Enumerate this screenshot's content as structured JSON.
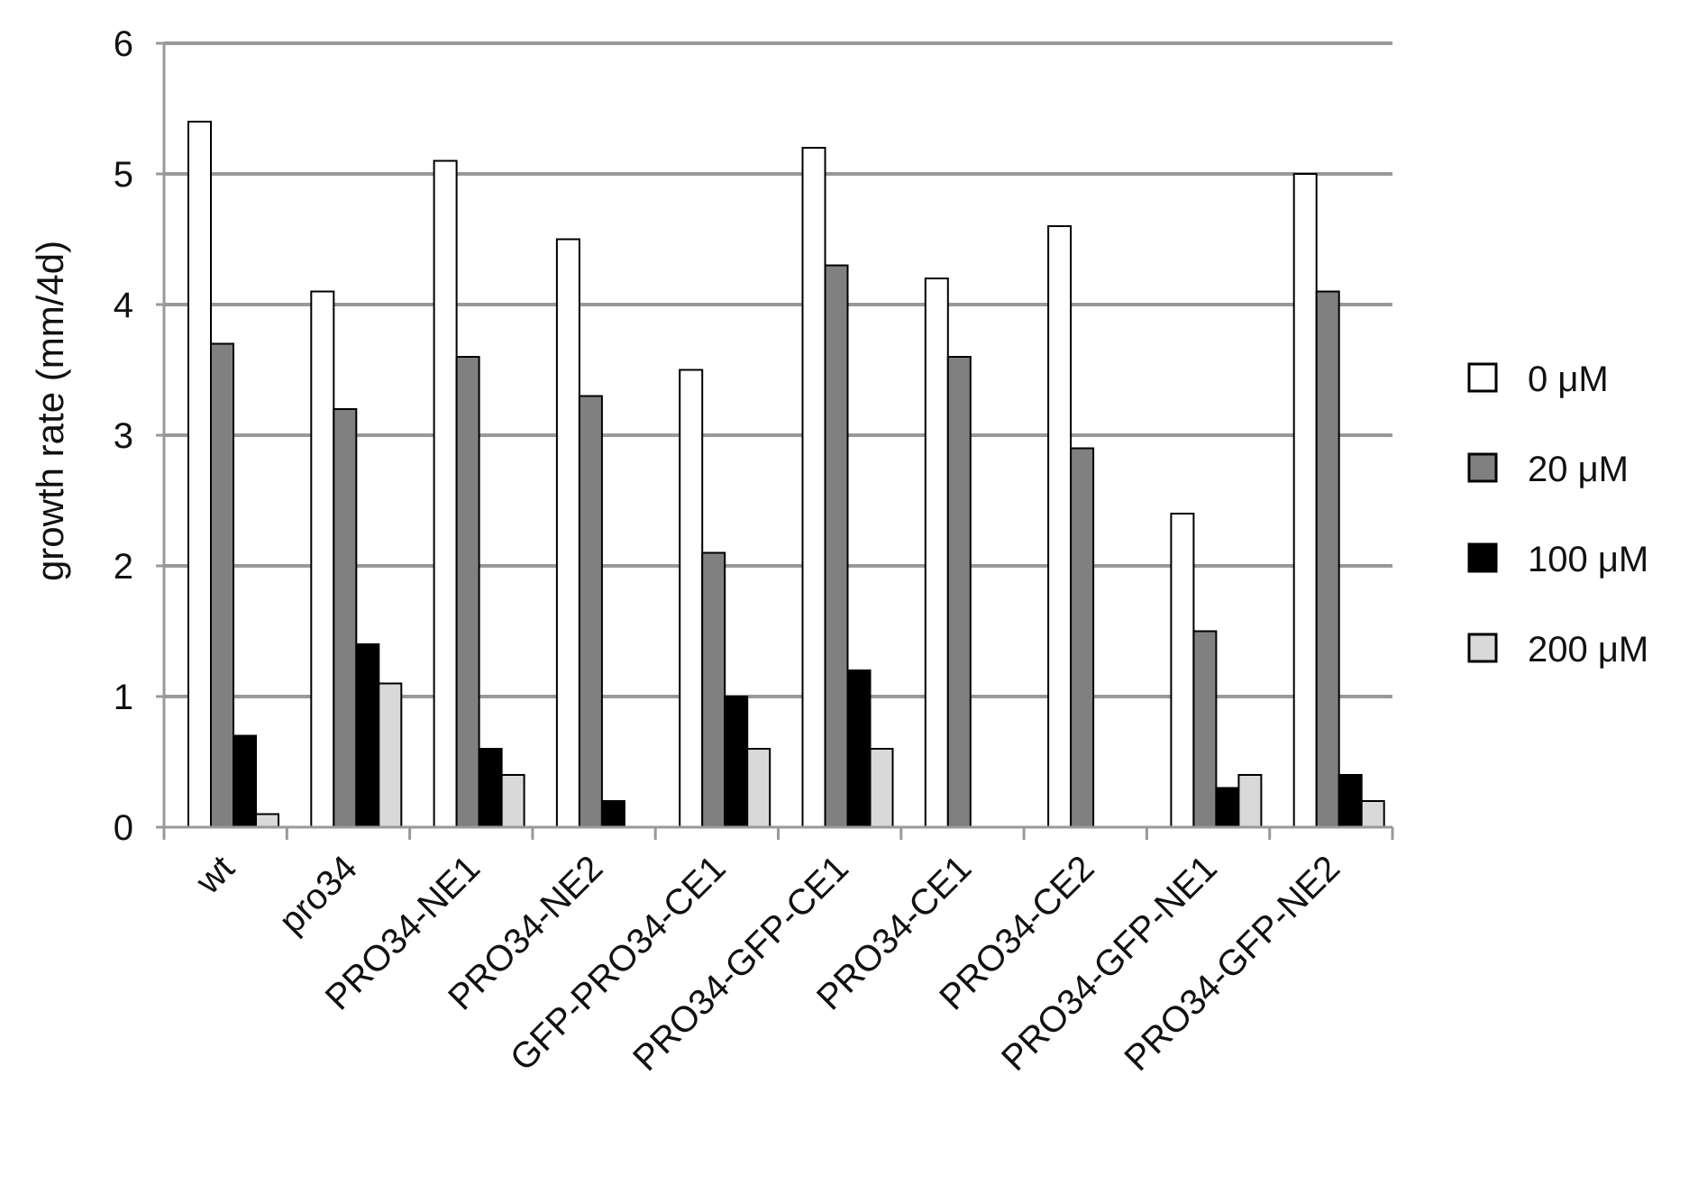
{
  "chart_data": {
    "type": "bar",
    "title": "",
    "xlabel": "",
    "ylabel": "growth rate (mm/4d)",
    "ylim": [
      0,
      6
    ],
    "yticks": [
      0,
      1,
      2,
      3,
      4,
      5,
      6
    ],
    "grid": true,
    "legend_position": "right",
    "categories": [
      "wt",
      "pro34",
      "PRO34-NE1",
      "PRO34-NE2",
      "GFP-PRO34-CE1",
      "PRO34-GFP-CE1",
      "PRO34-CE1",
      "PRO34-CE2",
      "PRO34-GFP-NE1",
      "PRO34-GFP-NE2"
    ],
    "series": [
      {
        "name": "0 μM",
        "color": "#ffffff",
        "values": [
          5.4,
          4.1,
          5.1,
          4.5,
          3.5,
          5.2,
          4.2,
          4.6,
          2.4,
          5.0
        ]
      },
      {
        "name": "20 μM",
        "color": "#808080",
        "values": [
          3.7,
          3.2,
          3.6,
          3.3,
          2.1,
          4.3,
          3.6,
          2.9,
          1.5,
          4.1
        ]
      },
      {
        "name": "100 μM",
        "color": "#000000",
        "values": [
          0.7,
          1.4,
          0.6,
          0.2,
          1.0,
          1.2,
          0.0,
          0.0,
          0.3,
          0.4
        ]
      },
      {
        "name": "200 μM",
        "color": "#d9d9d9",
        "values": [
          0.1,
          1.1,
          0.4,
          0.0,
          0.6,
          0.6,
          0.0,
          0.0,
          0.4,
          0.2
        ]
      }
    ]
  }
}
